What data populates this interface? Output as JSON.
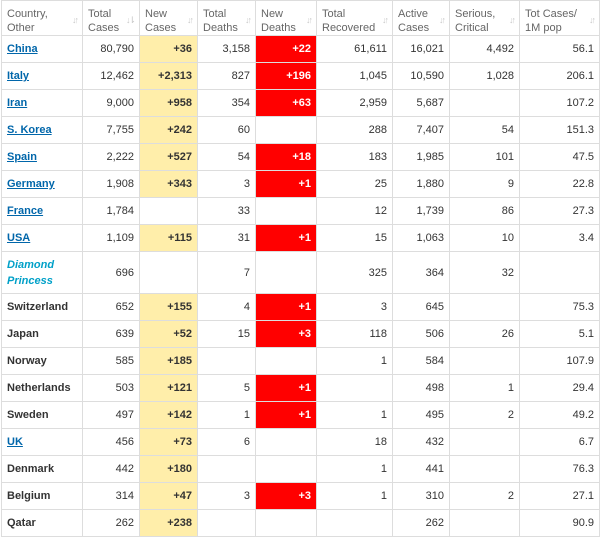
{
  "headers": [
    {
      "line1": "Country,",
      "line2": "Other"
    },
    {
      "line1": "Total",
      "line2": "Cases"
    },
    {
      "line1": "New",
      "line2": "Cases"
    },
    {
      "line1": "Total",
      "line2": "Deaths"
    },
    {
      "line1": "New",
      "line2": "Deaths"
    },
    {
      "line1": "Total",
      "line2": "Recovered"
    },
    {
      "line1": "Active",
      "line2": "Cases"
    },
    {
      "line1": "Serious,",
      "line2": "Critical"
    },
    {
      "line1": "Tot Cases/",
      "line2": "1M pop"
    }
  ],
  "sort_icons": {
    "unsorted": "↓↑",
    "sorted_desc": "↓⇂"
  },
  "rows": [
    {
      "country": "China",
      "style": "link",
      "total_cases": "80,790",
      "new_cases": "+36",
      "total_deaths": "3,158",
      "new_deaths": "+22",
      "total_recovered": "61,611",
      "active_cases": "16,021",
      "serious": "4,492",
      "per_million": "56.1"
    },
    {
      "country": "Italy",
      "style": "link",
      "total_cases": "12,462",
      "new_cases": "+2,313",
      "total_deaths": "827",
      "new_deaths": "+196",
      "total_recovered": "1,045",
      "active_cases": "10,590",
      "serious": "1,028",
      "per_million": "206.1"
    },
    {
      "country": "Iran",
      "style": "link",
      "total_cases": "9,000",
      "new_cases": "+958",
      "total_deaths": "354",
      "new_deaths": "+63",
      "total_recovered": "2,959",
      "active_cases": "5,687",
      "serious": "",
      "per_million": "107.2"
    },
    {
      "country": "S. Korea",
      "style": "link",
      "total_cases": "7,755",
      "new_cases": "+242",
      "total_deaths": "60",
      "new_deaths": "",
      "total_recovered": "288",
      "active_cases": "7,407",
      "serious": "54",
      "per_million": "151.3"
    },
    {
      "country": "Spain",
      "style": "link",
      "total_cases": "2,222",
      "new_cases": "+527",
      "total_deaths": "54",
      "new_deaths": "+18",
      "total_recovered": "183",
      "active_cases": "1,985",
      "serious": "101",
      "per_million": "47.5"
    },
    {
      "country": "Germany",
      "style": "link",
      "total_cases": "1,908",
      "new_cases": "+343",
      "total_deaths": "3",
      "new_deaths": "+1",
      "total_recovered": "25",
      "active_cases": "1,880",
      "serious": "9",
      "per_million": "22.8"
    },
    {
      "country": "France",
      "style": "link",
      "total_cases": "1,784",
      "new_cases": "",
      "total_deaths": "33",
      "new_deaths": "",
      "total_recovered": "12",
      "active_cases": "1,739",
      "serious": "86",
      "per_million": "27.3"
    },
    {
      "country": "USA",
      "style": "link",
      "total_cases": "1,109",
      "new_cases": "+115",
      "total_deaths": "31",
      "new_deaths": "+1",
      "total_recovered": "15",
      "active_cases": "1,063",
      "serious": "10",
      "per_million": "3.4"
    },
    {
      "country": "Diamond Princess",
      "style": "special",
      "total_cases": "696",
      "new_cases": "",
      "total_deaths": "7",
      "new_deaths": "",
      "total_recovered": "325",
      "active_cases": "364",
      "serious": "32",
      "per_million": ""
    },
    {
      "country": "Switzerland",
      "style": "plain",
      "total_cases": "652",
      "new_cases": "+155",
      "total_deaths": "4",
      "new_deaths": "+1",
      "total_recovered": "3",
      "active_cases": "645",
      "serious": "",
      "per_million": "75.3"
    },
    {
      "country": "Japan",
      "style": "plain",
      "total_cases": "639",
      "new_cases": "+52",
      "total_deaths": "15",
      "new_deaths": "+3",
      "total_recovered": "118",
      "active_cases": "506",
      "serious": "26",
      "per_million": "5.1"
    },
    {
      "country": "Norway",
      "style": "plain",
      "total_cases": "585",
      "new_cases": "+185",
      "total_deaths": "",
      "new_deaths": "",
      "total_recovered": "1",
      "active_cases": "584",
      "serious": "",
      "per_million": "107.9"
    },
    {
      "country": "Netherlands",
      "style": "plain",
      "total_cases": "503",
      "new_cases": "+121",
      "total_deaths": "5",
      "new_deaths": "+1",
      "total_recovered": "",
      "active_cases": "498",
      "serious": "1",
      "per_million": "29.4"
    },
    {
      "country": "Sweden",
      "style": "plain",
      "total_cases": "497",
      "new_cases": "+142",
      "total_deaths": "1",
      "new_deaths": "+1",
      "total_recovered": "1",
      "active_cases": "495",
      "serious": "2",
      "per_million": "49.2"
    },
    {
      "country": "UK",
      "style": "link",
      "total_cases": "456",
      "new_cases": "+73",
      "total_deaths": "6",
      "new_deaths": "",
      "total_recovered": "18",
      "active_cases": "432",
      "serious": "",
      "per_million": "6.7"
    },
    {
      "country": "Denmark",
      "style": "plain",
      "total_cases": "442",
      "new_cases": "+180",
      "total_deaths": "",
      "new_deaths": "",
      "total_recovered": "1",
      "active_cases": "441",
      "serious": "",
      "per_million": "76.3"
    },
    {
      "country": "Belgium",
      "style": "plain",
      "total_cases": "314",
      "new_cases": "+47",
      "total_deaths": "3",
      "new_deaths": "+3",
      "total_recovered": "1",
      "active_cases": "310",
      "serious": "2",
      "per_million": "27.1"
    },
    {
      "country": "Qatar",
      "style": "plain",
      "total_cases": "262",
      "new_cases": "+238",
      "total_deaths": "",
      "new_deaths": "",
      "total_recovered": "",
      "active_cases": "262",
      "serious": "",
      "per_million": "90.9"
    }
  ]
}
